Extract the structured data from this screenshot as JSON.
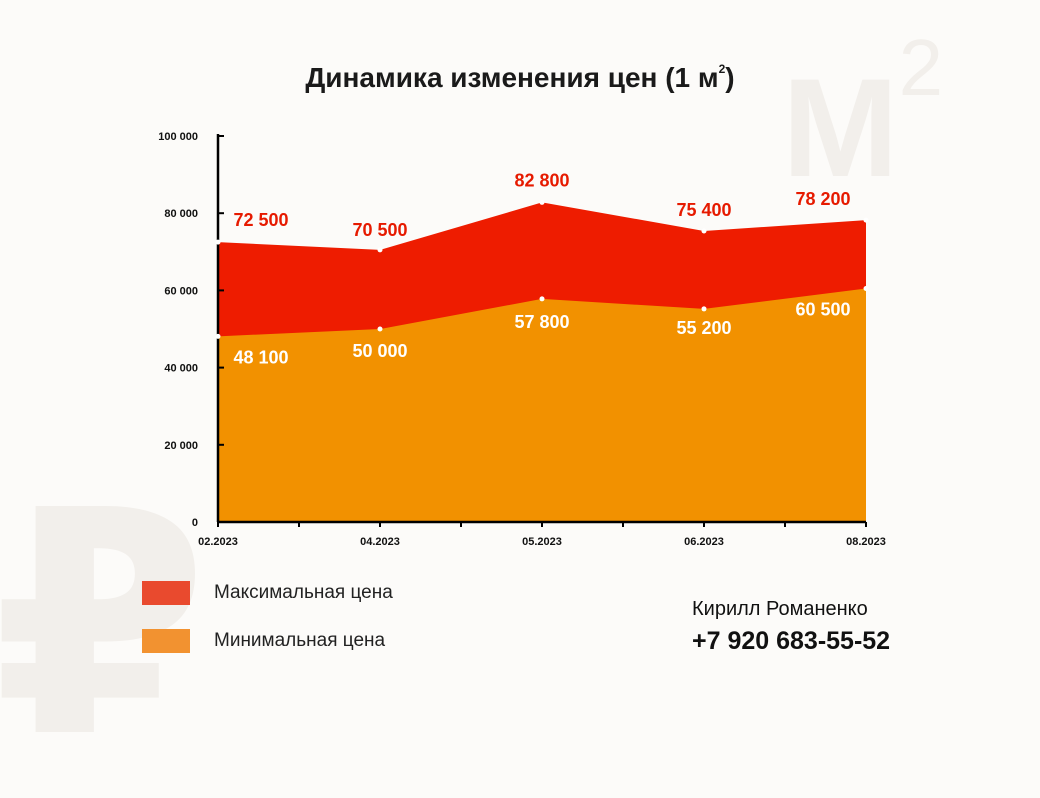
{
  "title": {
    "main": "Динамика изменения цен (1 м",
    "sup": "2",
    "close": ")"
  },
  "watermark": {
    "m": "M",
    "sup": "2",
    "ruble": "₽"
  },
  "chart_data": {
    "type": "area",
    "categories": [
      "02.2023",
      "04.2023",
      "05.2023",
      "06.2023",
      "08.2023"
    ],
    "series": [
      {
        "name": "Максимальная цена",
        "values": [
          72500,
          70500,
          82800,
          75400,
          78200
        ],
        "labels": [
          "72 500",
          "70 500",
          "82 800",
          "75 400",
          "78 200"
        ],
        "color": "#ee1c00"
      },
      {
        "name": "Минимальная цена",
        "values": [
          48100,
          50000,
          57800,
          55200,
          60500
        ],
        "labels": [
          "48 100",
          "50 000",
          "57 800",
          "55 200",
          "60 500"
        ],
        "color": "#f29100"
      }
    ],
    "yticks": [
      0,
      20000,
      40000,
      60000,
      80000,
      100000
    ],
    "ytick_labels": [
      "0",
      "20 000",
      "40 000",
      "60 000",
      "80 000",
      "100 000"
    ],
    "ylim": [
      0,
      100000
    ],
    "grid": false
  },
  "legend": [
    {
      "label": "Максимальная цена",
      "color": "#e94a2e"
    },
    {
      "label": "Минимальная цена",
      "color": "#f29230"
    }
  ],
  "contact": {
    "name": "Кирилл Романенко",
    "phone": "+7 920 683-55-52"
  }
}
